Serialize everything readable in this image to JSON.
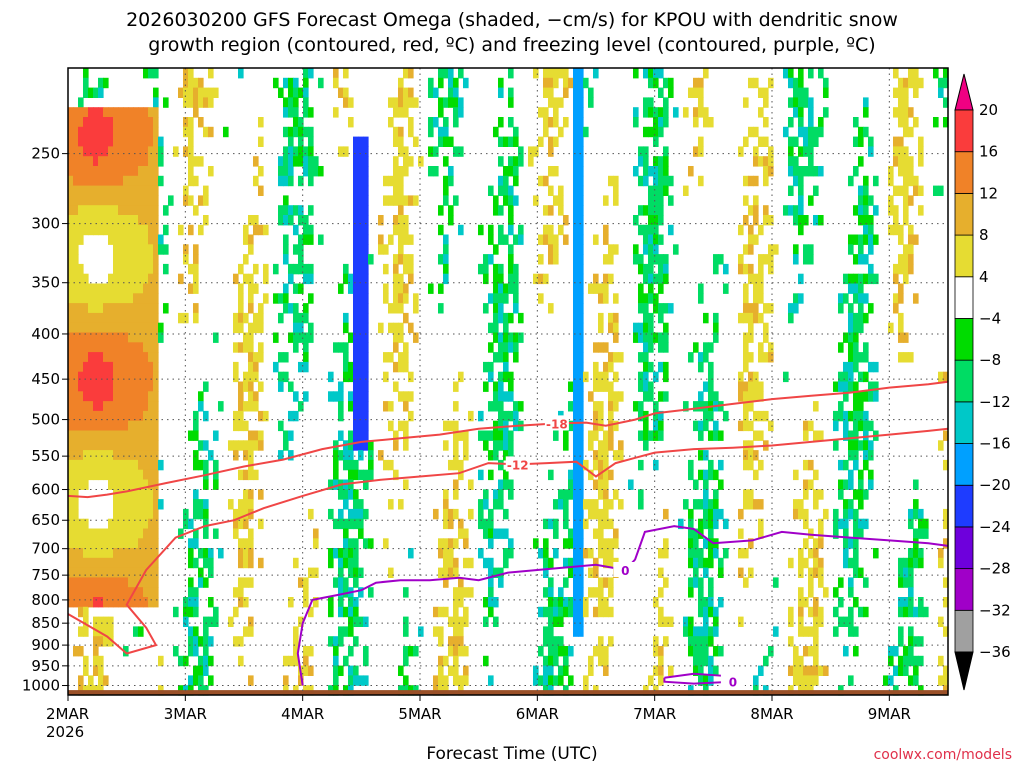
{
  "chart_data": {
    "type": "heatmap",
    "title": "2026030200 GFS Forecast Omega (shaded, −cm/s) for KPOU with dendritic snow\ngrowth region (contoured, red, ºC) and freezing level (contoured, purple, ºC)",
    "xlabel": "Forecast Time (UTC)",
    "ylabel": "",
    "y_scale": "log",
    "y_reversed": true,
    "ylim": [
      1025,
      200
    ],
    "y_ticks": [
      250,
      300,
      350,
      400,
      450,
      500,
      550,
      600,
      650,
      700,
      750,
      800,
      850,
      900,
      950,
      1000
    ],
    "x_ticks": [
      {
        "t": 0,
        "label": "2MAR",
        "sub": "2026"
      },
      {
        "t": 24,
        "label": "3MAR",
        "sub": ""
      },
      {
        "t": 48,
        "label": "4MAR",
        "sub": ""
      },
      {
        "t": 72,
        "label": "5MAR",
        "sub": ""
      },
      {
        "t": 96,
        "label": "6MAR",
        "sub": ""
      },
      {
        "t": 120,
        "label": "7MAR",
        "sub": ""
      },
      {
        "t": 144,
        "label": "8MAR",
        "sub": ""
      },
      {
        "t": 168,
        "label": "9MAR",
        "sub": ""
      }
    ],
    "xlim": [
      0,
      180
    ],
    "colorbar": {
      "levels": [
        -36,
        -32,
        -28,
        -24,
        -20,
        -16,
        -12,
        -8,
        -4,
        4,
        8,
        12,
        16,
        20
      ],
      "labels": [
        "−36",
        "−32",
        "−28",
        "−24",
        "−20",
        "−16",
        "−12",
        "−8",
        "−4",
        "4",
        "8",
        "12",
        "16",
        "20"
      ],
      "colors": [
        "#000000",
        "#a0a0a0",
        "#a000c8",
        "#6e00dc",
        "#1e3cff",
        "#00a0ff",
        "#00c8c8",
        "#00dc64",
        "#00dc00",
        "#ffffff",
        "#e6dc32",
        "#e6af2d",
        "#f08228",
        "#fa3c3c",
        "#f00082"
      ]
    },
    "contours": [
      {
        "label": "-18",
        "color": "#f04646",
        "points": [
          [
            0,
            610
          ],
          [
            4,
            612
          ],
          [
            8,
            608
          ],
          [
            12,
            603
          ],
          [
            20,
            590
          ],
          [
            28,
            578
          ],
          [
            36,
            565
          ],
          [
            44,
            555
          ],
          [
            52,
            540
          ],
          [
            60,
            530
          ],
          [
            68,
            525
          ],
          [
            76,
            520
          ],
          [
            84,
            512
          ],
          [
            92,
            508
          ],
          [
            100,
            505
          ],
          [
            106,
            504
          ],
          [
            110,
            508
          ],
          [
            116,
            500
          ],
          [
            120,
            492
          ],
          [
            128,
            486
          ],
          [
            136,
            480
          ],
          [
            144,
            474
          ],
          [
            152,
            470
          ],
          [
            160,
            466
          ],
          [
            168,
            460
          ],
          [
            176,
            456
          ],
          [
            180,
            453
          ]
        ]
      },
      {
        "label": "-12",
        "color": "#f04646",
        "points": [
          [
            0,
            830
          ],
          [
            8,
            880
          ],
          [
            12,
            920
          ],
          [
            18,
            900
          ],
          [
            16,
            860
          ],
          [
            12,
            810
          ],
          [
            16,
            740
          ],
          [
            22,
            680
          ],
          [
            28,
            660
          ],
          [
            34,
            650
          ],
          [
            40,
            630
          ],
          [
            48,
            610
          ],
          [
            56,
            592
          ],
          [
            64,
            585
          ],
          [
            72,
            580
          ],
          [
            80,
            575
          ],
          [
            86,
            560
          ],
          [
            92,
            562
          ],
          [
            98,
            560
          ],
          [
            104,
            558
          ],
          [
            108,
            580
          ],
          [
            112,
            560
          ],
          [
            120,
            545
          ],
          [
            128,
            540
          ],
          [
            136,
            538
          ],
          [
            144,
            535
          ],
          [
            152,
            530
          ],
          [
            160,
            525
          ],
          [
            168,
            520
          ],
          [
            176,
            515
          ],
          [
            180,
            512
          ]
        ]
      },
      {
        "label": "0",
        "color": "#a000c8",
        "points": [
          [
            48,
            1000
          ],
          [
            47,
            920
          ],
          [
            48,
            850
          ],
          [
            50,
            800
          ],
          [
            55,
            790
          ],
          [
            60,
            780
          ],
          [
            63,
            765
          ],
          [
            68,
            760
          ],
          [
            74,
            760
          ],
          [
            80,
            755
          ],
          [
            84,
            760
          ],
          [
            90,
            745
          ],
          [
            96,
            740
          ],
          [
            102,
            735
          ],
          [
            108,
            730
          ],
          [
            114,
            740
          ],
          [
            116,
            720
          ],
          [
            118,
            670
          ],
          [
            124,
            660
          ],
          [
            128,
            665
          ],
          [
            132,
            690
          ],
          [
            140,
            685
          ],
          [
            146,
            670
          ],
          [
            152,
            675
          ],
          [
            160,
            680
          ],
          [
            168,
            685
          ],
          [
            176,
            690
          ],
          [
            180,
            695
          ]
        ]
      },
      {
        "label": "0",
        "color": "#a000c8",
        "points": [
          [
            122,
            980
          ],
          [
            128,
            970
          ],
          [
            134,
            975
          ],
          [
            136,
            990
          ],
          [
            128,
            995
          ],
          [
            122,
            990
          ],
          [
            122,
            980
          ]
        ]
      }
    ]
  },
  "credit": "coolwx.com/models"
}
